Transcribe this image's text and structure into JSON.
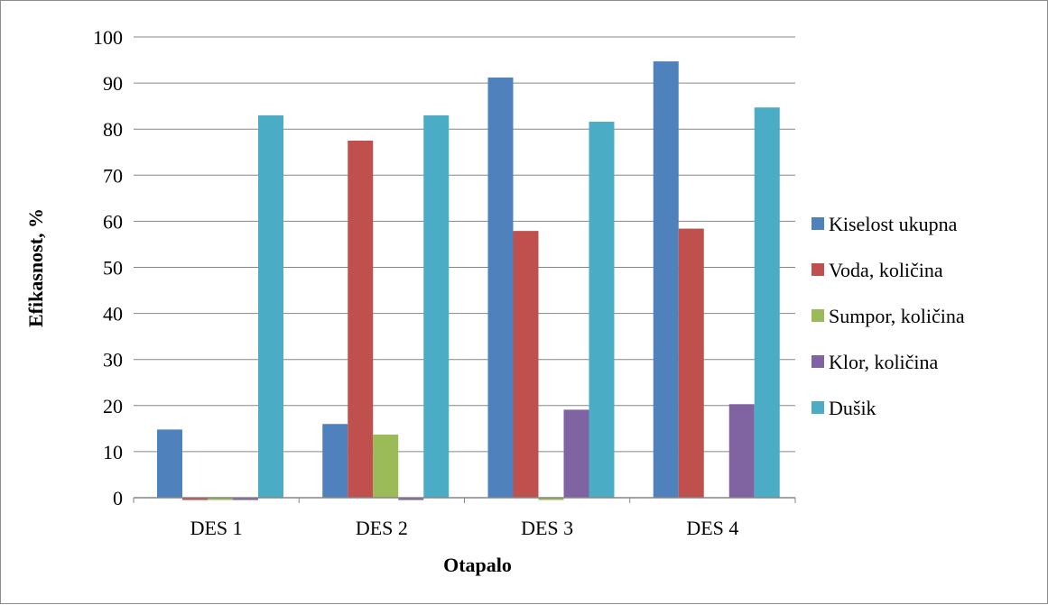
{
  "chart_data": {
    "type": "bar",
    "title": "",
    "xlabel": "Otapalo",
    "ylabel": "Efikasnost, %",
    "categories": [
      "DES 1",
      "DES 2",
      "DES 3",
      "DES 4"
    ],
    "ylim": [
      0,
      100
    ],
    "yticks": [
      0,
      10,
      20,
      30,
      40,
      50,
      60,
      70,
      80,
      90,
      100
    ],
    "grid": "horizontal",
    "legend_position": "right",
    "series": [
      {
        "name": "Kiselost ukupna",
        "color": "#4F81BD",
        "values": [
          14.8,
          16,
          91.2,
          94.7
        ]
      },
      {
        "name": "Voda, količina",
        "color": "#C0504D",
        "values": [
          -0.5,
          77.5,
          57.9,
          58.4
        ]
      },
      {
        "name": "Sumpor, količina",
        "color": "#9BBB59",
        "values": [
          -0.5,
          13.7,
          -0.5,
          0
        ]
      },
      {
        "name": "Klor, količina",
        "color": "#8064A2",
        "values": [
          -0.5,
          -0.5,
          19.1,
          20.3
        ]
      },
      {
        "name": "Dušik",
        "color": "#4BACC6",
        "values": [
          83,
          83,
          81.6,
          84.7
        ]
      }
    ]
  }
}
